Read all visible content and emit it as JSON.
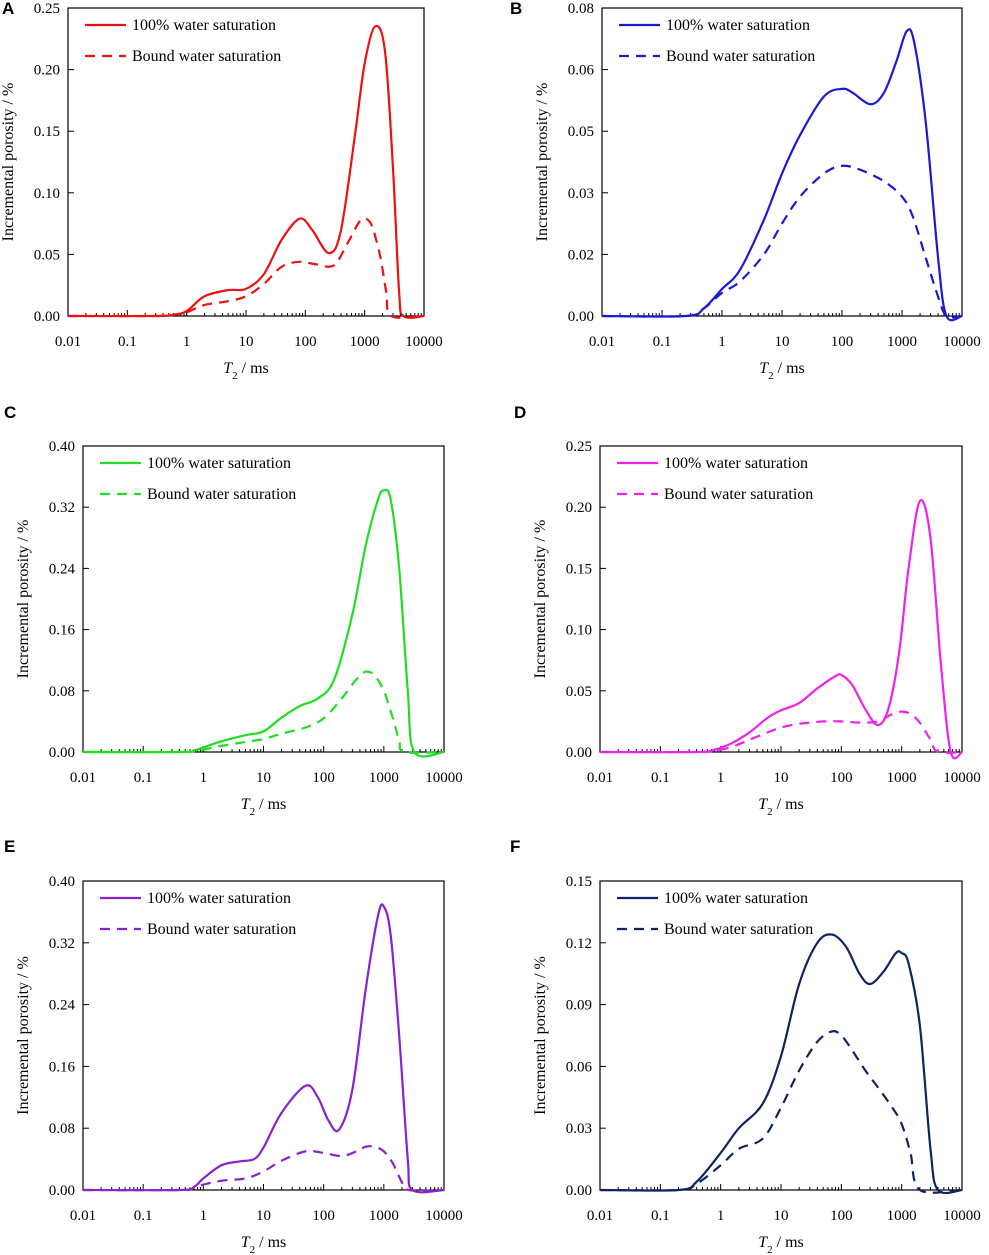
{
  "chart_data": [
    {
      "panel": "A",
      "type": "line",
      "color": "#ee1111",
      "xscale": "log",
      "xlim": [
        0.01,
        10000
      ],
      "ylim": [
        0,
        0.25
      ],
      "x_ticks": [
        "0.01",
        "0.1",
        "1",
        "10",
        "100",
        "1000",
        "10000"
      ],
      "y_ticks": [
        "0.00",
        "0.05",
        "0.10",
        "0.15",
        "0.20",
        "0.25"
      ],
      "xlabel_var": "T",
      "xlabel_sub": "2",
      "xlabel_unit": " / ms",
      "ylabel": "Incremental porosity / %",
      "legend_position": "top-left",
      "series": [
        {
          "name": "100% water saturation",
          "style": "solid",
          "x": [
            0.01,
            0.3,
            0.6,
            1,
            2,
            5,
            10,
            20,
            40,
            80,
            130,
            250,
            400,
            700,
            1000,
            1500,
            2200,
            3000,
            3800,
            4500,
            10000
          ],
          "y": [
            0,
            0,
            0.001,
            0.004,
            0.016,
            0.021,
            0.022,
            0.034,
            0.062,
            0.079,
            0.07,
            0.051,
            0.07,
            0.15,
            0.205,
            0.235,
            0.215,
            0.12,
            0.02,
            0,
            0
          ]
        },
        {
          "name": "Bound water saturation",
          "style": "dashed",
          "x": [
            0.01,
            0.3,
            0.6,
            1,
            2,
            5,
            10,
            20,
            40,
            80,
            150,
            300,
            500,
            800,
            1000,
            1300,
            1800,
            2300,
            2800,
            10000
          ],
          "y": [
            0,
            0,
            0.001,
            0.003,
            0.009,
            0.012,
            0.016,
            0.026,
            0.04,
            0.044,
            0.042,
            0.041,
            0.058,
            0.076,
            0.079,
            0.074,
            0.05,
            0.02,
            0,
            0
          ]
        }
      ]
    },
    {
      "panel": "B",
      "type": "line",
      "color": "#1a1ad4",
      "xscale": "log",
      "xlim": [
        0.01,
        10000
      ],
      "ylim": [
        0,
        0.08
      ],
      "x_ticks": [
        "0.01",
        "0.1",
        "1",
        "10",
        "100",
        "1000",
        "10000"
      ],
      "y_ticks": [
        "0.00",
        "0.02",
        "0.03",
        "0.05",
        "0.06",
        "0.08"
      ],
      "xlabel_var": "T",
      "xlabel_sub": "2",
      "xlabel_unit": " / ms",
      "ylabel": "Incremental porosity / %",
      "legend_position": "top-left",
      "series": [
        {
          "name": "100% water saturation",
          "style": "solid",
          "x": [
            0.01,
            0.25,
            0.5,
            1,
            2,
            5,
            10,
            20,
            50,
            100,
            150,
            300,
            500,
            800,
            1200,
            1600,
            2500,
            4000,
            5500,
            10000
          ],
          "y": [
            0,
            0,
            0.002,
            0.007,
            0.012,
            0.025,
            0.037,
            0.047,
            0.057,
            0.059,
            0.058,
            0.055,
            0.058,
            0.066,
            0.074,
            0.071,
            0.05,
            0.015,
            0,
            0
          ]
        },
        {
          "name": "Bound water saturation",
          "style": "dashed",
          "x": [
            0.01,
            0.25,
            0.5,
            1,
            2,
            5,
            10,
            20,
            50,
            100,
            200,
            500,
            1000,
            1500,
            2500,
            4000,
            5500,
            10000
          ],
          "y": [
            0,
            0,
            0.002,
            0.006,
            0.009,
            0.016,
            0.024,
            0.031,
            0.037,
            0.039,
            0.038,
            0.035,
            0.031,
            0.026,
            0.015,
            0.005,
            0,
            0
          ]
        }
      ]
    },
    {
      "panel": "C",
      "type": "line",
      "color": "#22dd22",
      "xscale": "log",
      "xlim": [
        0.01,
        10000
      ],
      "ylim": [
        0,
        0.4
      ],
      "x_ticks": [
        "0.01",
        "0.1",
        "1",
        "10",
        "100",
        "1000",
        "10000"
      ],
      "y_ticks": [
        "0.00",
        "0.08",
        "0.16",
        "0.24",
        "0.32",
        "0.40"
      ],
      "xlabel_var": "T",
      "xlabel_sub": "2",
      "xlabel_unit": " / ms",
      "ylabel": "Incremental porosity / %",
      "legend_position": "top-left",
      "series": [
        {
          "name": "100% water saturation",
          "style": "solid",
          "x": [
            0.01,
            0.4,
            0.7,
            1,
            2,
            5,
            10,
            20,
            40,
            80,
            150,
            300,
            500,
            800,
            1000,
            1300,
            1800,
            2500,
            3200,
            10000
          ],
          "y": [
            0,
            0,
            0.002,
            0.006,
            0.014,
            0.022,
            0.027,
            0.045,
            0.06,
            0.07,
            0.095,
            0.18,
            0.27,
            0.33,
            0.342,
            0.33,
            0.24,
            0.08,
            0,
            0
          ]
        },
        {
          "name": "Bound water saturation",
          "style": "dashed",
          "x": [
            0.01,
            0.4,
            0.7,
            1,
            2,
            5,
            10,
            20,
            50,
            100,
            200,
            350,
            500,
            700,
            1000,
            1400,
            1800,
            2200,
            10000
          ],
          "y": [
            0,
            0,
            0.001,
            0.003,
            0.008,
            0.013,
            0.017,
            0.024,
            0.032,
            0.044,
            0.07,
            0.095,
            0.105,
            0.1,
            0.08,
            0.045,
            0.015,
            0,
            0
          ]
        }
      ]
    },
    {
      "panel": "D",
      "type": "line",
      "color": "#ee22ee",
      "xscale": "log",
      "xlim": [
        0.01,
        10000
      ],
      "ylim": [
        0,
        0.25
      ],
      "x_ticks": [
        "0.01",
        "0.1",
        "1",
        "10",
        "100",
        "1000",
        "10000"
      ],
      "y_ticks": [
        "0.00",
        "0.05",
        "0.10",
        "0.15",
        "0.20",
        "0.25"
      ],
      "xlabel_var": "T",
      "xlabel_sub": "2",
      "xlabel_unit": " / ms",
      "ylabel": "Incremental porosity / %",
      "legend_position": "top-left",
      "series": [
        {
          "name": "100% water saturation",
          "style": "solid",
          "x": [
            0.01,
            0.4,
            0.8,
            1.5,
            3,
            6,
            10,
            20,
            40,
            80,
            100,
            150,
            250,
            400,
            600,
            900,
            1300,
            2000,
            3000,
            4500,
            6500,
            10000
          ],
          "y": [
            0,
            0,
            0.002,
            0.007,
            0.016,
            0.028,
            0.034,
            0.04,
            0.052,
            0.062,
            0.063,
            0.055,
            0.035,
            0.022,
            0.035,
            0.08,
            0.15,
            0.205,
            0.175,
            0.07,
            0,
            0
          ]
        },
        {
          "name": "Bound water saturation",
          "style": "dashed",
          "x": [
            0.01,
            0.4,
            0.8,
            1.5,
            3,
            6,
            10,
            20,
            50,
            100,
            200,
            400,
            700,
            1000,
            1400,
            2000,
            3000,
            4000,
            10000
          ],
          "y": [
            0,
            0,
            0.001,
            0.004,
            0.01,
            0.016,
            0.02,
            0.023,
            0.025,
            0.025,
            0.024,
            0.025,
            0.031,
            0.033,
            0.031,
            0.024,
            0.01,
            0,
            0
          ]
        }
      ]
    },
    {
      "panel": "E",
      "type": "line",
      "color": "#8822cc",
      "xscale": "log",
      "xlim": [
        0.01,
        10000
      ],
      "ylim": [
        0,
        0.4
      ],
      "x_ticks": [
        "0.01",
        "0.1",
        "1",
        "10",
        "100",
        "1000",
        "10000"
      ],
      "y_ticks": [
        "0.00",
        "0.08",
        "0.16",
        "0.24",
        "0.32",
        "0.40"
      ],
      "xlabel_var": "T",
      "xlabel_sub": "2",
      "xlabel_unit": " / ms",
      "ylabel": "Incremental porosity / %",
      "legend_position": "top-left",
      "series": [
        {
          "name": "100% water saturation",
          "style": "solid",
          "x": [
            0.01,
            0.4,
            0.7,
            1,
            2,
            4,
            7,
            10,
            20,
            50,
            80,
            120,
            180,
            300,
            500,
            800,
            1000,
            1300,
            1800,
            2500,
            3000,
            10000
          ],
          "y": [
            0,
            0,
            0.004,
            0.015,
            0.032,
            0.037,
            0.04,
            0.055,
            0.1,
            0.135,
            0.12,
            0.09,
            0.078,
            0.13,
            0.26,
            0.355,
            0.367,
            0.33,
            0.2,
            0.04,
            0,
            0
          ]
        },
        {
          "name": "Bound water saturation",
          "style": "dashed",
          "x": [
            0.01,
            0.4,
            0.7,
            1,
            2,
            5,
            10,
            20,
            50,
            100,
            200,
            350,
            500,
            700,
            1000,
            1400,
            2000,
            2600,
            10000
          ],
          "y": [
            0,
            0,
            0.003,
            0.007,
            0.012,
            0.015,
            0.024,
            0.038,
            0.05,
            0.048,
            0.044,
            0.05,
            0.056,
            0.056,
            0.05,
            0.035,
            0.01,
            0,
            0
          ]
        }
      ]
    },
    {
      "panel": "F",
      "type": "line",
      "color": "#0f2460",
      "xscale": "log",
      "xlim": [
        0.01,
        10000
      ],
      "ylim": [
        0,
        0.15
      ],
      "x_ticks": [
        "0.01",
        "0.1",
        "1",
        "10",
        "100",
        "1000",
        "10000"
      ],
      "y_ticks": [
        "0.00",
        "0.03",
        "0.06",
        "0.09",
        "0.12",
        "0.15"
      ],
      "xlabel_var": "T",
      "xlabel_sub": "2",
      "xlabel_unit": " / ms",
      "ylabel": "Incremental porosity / %",
      "legend_position": "top-left",
      "series": [
        {
          "name": "100% water saturation",
          "style": "solid",
          "x": [
            0.01,
            0.2,
            0.4,
            1,
            2,
            5,
            10,
            20,
            40,
            70,
            120,
            200,
            300,
            500,
            800,
            1000,
            1300,
            2000,
            3000,
            4000,
            10000
          ],
          "y": [
            0,
            0,
            0.004,
            0.018,
            0.03,
            0.042,
            0.065,
            0.1,
            0.12,
            0.124,
            0.118,
            0.105,
            0.1,
            0.106,
            0.115,
            0.115,
            0.11,
            0.08,
            0.02,
            0,
            0
          ]
        },
        {
          "name": "Bound water saturation",
          "style": "dashed",
          "x": [
            0.01,
            0.2,
            0.4,
            1,
            2,
            5,
            10,
            20,
            40,
            70,
            100,
            150,
            250,
            400,
            700,
            1000,
            1400,
            2000,
            10000
          ],
          "y": [
            0,
            0,
            0.003,
            0.012,
            0.02,
            0.025,
            0.04,
            0.058,
            0.072,
            0.077,
            0.075,
            0.068,
            0.058,
            0.05,
            0.04,
            0.032,
            0.018,
            0,
            0
          ]
        }
      ]
    }
  ]
}
